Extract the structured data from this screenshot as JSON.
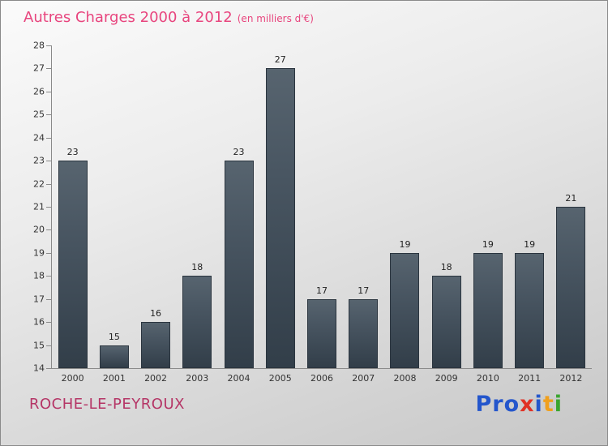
{
  "title": {
    "main": "Autres Charges 2000 à 2012",
    "subtitle": "(en milliers d'€)"
  },
  "footer": {
    "company": "ROCHE-LE-PEYROUX",
    "logo": {
      "text": "Proxiti",
      "letters": [
        {
          "ch": "P",
          "color": "#2456cc"
        },
        {
          "ch": "r",
          "color": "#2456cc"
        },
        {
          "ch": "o",
          "color": "#2456cc"
        },
        {
          "ch": "x",
          "color": "#e03125"
        },
        {
          "ch": "i",
          "color": "#2456cc"
        },
        {
          "ch": "t",
          "color": "#f0a01e"
        },
        {
          "ch": "i",
          "color": "#3aa52f"
        }
      ]
    }
  },
  "chart_data": {
    "type": "bar",
    "title": "Autres Charges 2000 à 2012",
    "subtitle": "(en milliers d'€)",
    "categories": [
      "2000",
      "2001",
      "2002",
      "2003",
      "2004",
      "2005",
      "2006",
      "2007",
      "2008",
      "2009",
      "2010",
      "2011",
      "2012"
    ],
    "values": [
      23,
      15,
      16,
      18,
      23,
      27,
      17,
      17,
      19,
      18,
      19,
      19,
      21
    ],
    "xlabel": "",
    "ylabel": "",
    "ylim": [
      14,
      28
    ],
    "ytick_step": 1,
    "grid": false,
    "legend": false,
    "bar_color_top": "#57646f",
    "bar_color_bottom": "#323e49",
    "title_color": "#e8457e",
    "company_color": "#b53566"
  }
}
